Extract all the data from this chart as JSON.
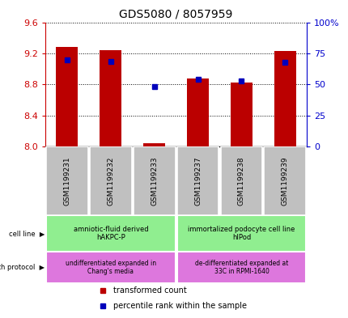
{
  "title": "GDS5080 / 8057959",
  "samples": [
    "GSM1199231",
    "GSM1199232",
    "GSM1199233",
    "GSM1199237",
    "GSM1199238",
    "GSM1199239"
  ],
  "red_values": [
    9.28,
    9.24,
    8.05,
    8.88,
    8.83,
    9.23
  ],
  "blue_values": [
    9.12,
    9.1,
    8.77,
    8.87,
    8.85,
    9.09
  ],
  "ylim_left": [
    8.0,
    9.6
  ],
  "ylim_right": [
    0,
    100
  ],
  "yticks_left": [
    8.0,
    8.4,
    8.8,
    9.2,
    9.6
  ],
  "yticks_right": [
    0,
    25,
    50,
    75,
    100
  ],
  "ytick_labels_right": [
    "0",
    "25",
    "50",
    "75",
    "100%"
  ],
  "cell_line_groups": [
    {
      "label": "amniotic-fluid derived\nhAKPC-P",
      "samples_idx": [
        0,
        1,
        2
      ],
      "color": "#90EE90"
    },
    {
      "label": "immortalized podocyte cell line\nhIPod",
      "samples_idx": [
        3,
        4,
        5
      ],
      "color": "#90EE90"
    }
  ],
  "growth_protocol_groups": [
    {
      "label": "undifferentiated expanded in\nChang's media",
      "samples_idx": [
        0,
        1,
        2
      ],
      "color": "#DD77DD"
    },
    {
      "label": "de-differentiated expanded at\n33C in RPMI-1640",
      "samples_idx": [
        3,
        4,
        5
      ],
      "color": "#DD77DD"
    }
  ],
  "bar_width": 0.5,
  "red_color": "#BB0000",
  "blue_color": "#0000BB",
  "grid_color": "#000000",
  "left_axis_color": "#CC0000",
  "right_axis_color": "#0000CC",
  "background_color": "#ffffff",
  "sample_label_bg": "#C0C0C0",
  "title_fontsize": 10,
  "tick_fontsize": 8,
  "sample_fontsize": 6.5,
  "annotation_fontsize": 6,
  "legend_fontsize": 7
}
